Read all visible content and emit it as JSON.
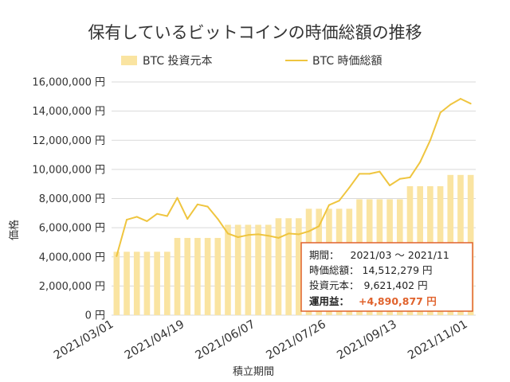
{
  "chart_data": {
    "type": "bar",
    "title": "保有しているビットコインの時価総額の推移",
    "xlabel": "積立期間",
    "ylabel": "価格",
    "ylim": [
      0,
      16000000
    ],
    "y_tick_labels": [
      "0 円",
      "2,000,000 円",
      "4,000,000 円",
      "6,000,000 円",
      "8,000,000 円",
      "10,000,000 円",
      "12,000,000 円",
      "14,000,000 円",
      "16,000,000 円"
    ],
    "x_tick_labels": [
      "2021/03/01",
      "2021/04/19",
      "2021/06/07",
      "2021/07/26",
      "2021/09/13",
      "2021/11/01"
    ],
    "series": [
      {
        "name": "BTC 投資元本",
        "type": "bar",
        "values": [
          4350000,
          4350000,
          4350000,
          4350000,
          4350000,
          4350000,
          5300000,
          5300000,
          5300000,
          5300000,
          5300000,
          6200000,
          6200000,
          6200000,
          6200000,
          6200000,
          6650000,
          6650000,
          6650000,
          7300000,
          7300000,
          7300000,
          7300000,
          7300000,
          7950000,
          7950000,
          7950000,
          7950000,
          7950000,
          8850000,
          8850000,
          8850000,
          8850000,
          9621402,
          9621402,
          9621402
        ]
      },
      {
        "name": "BTC 時価総額",
        "type": "line",
        "values": [
          4050000,
          6550000,
          6750000,
          6450000,
          6950000,
          6800000,
          8050000,
          6600000,
          7600000,
          7450000,
          6600000,
          5600000,
          5350000,
          5500000,
          5550000,
          5450000,
          5300000,
          5600000,
          5550000,
          5750000,
          6100000,
          7550000,
          7850000,
          8750000,
          9700000,
          9700000,
          9850000,
          8900000,
          9350000,
          9450000,
          10500000,
          12000000,
          13900000,
          14450000,
          14850000,
          14512279
        ]
      }
    ],
    "grid": true,
    "legend": "top",
    "colors": {
      "bar": "#FAE4A1",
      "line": "#EFC53F",
      "grid": "#D9D9D9",
      "annotation_border": "#E0622C",
      "highlight": "#E0622C"
    }
  },
  "summary_box": {
    "period_label": "期間：",
    "period_value": "2021/03 ～ 2021/11",
    "market_value_label": "時価総額：",
    "market_value_value": "14,512,279 円",
    "principal_label": "投資元本：",
    "principal_value": "9,621,402 円",
    "profit_label": "運用益：",
    "profit_value": "+4,890,877 円"
  }
}
